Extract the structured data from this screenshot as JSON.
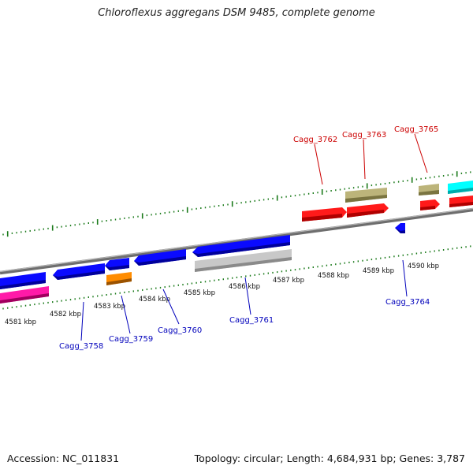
{
  "title": "Chloroflexus aggregans DSM 9485, complete genome",
  "accession": "Accession: NC_011831",
  "topology": "Topology: circular; Length: 4,684,931 bp; Genes: 3,787",
  "scale_labels": [
    "4581 kbp",
    "4582 kbp",
    "4583 kbp",
    "4584 kbp",
    "4585 kbp",
    "4586 kbp",
    "4587 kbp",
    "4588 kbp",
    "4589 kbp",
    "4590 kbp"
  ],
  "gene_labels": {
    "forward": [
      "Cagg_3762",
      "Cagg_3763",
      "Cagg_3765"
    ],
    "reverse": [
      "Cagg_3758",
      "Cagg_3759",
      "Cagg_3760",
      "Cagg_3761",
      "Cagg_3764"
    ]
  },
  "colors": {
    "forward_label": "#cc0000",
    "reverse_label": "#0000bb",
    "backbone": "#808080",
    "tick": "#1a7a1a",
    "label_line_forward": "#cc0000",
    "label_line_reverse": "#0000bb"
  }
}
